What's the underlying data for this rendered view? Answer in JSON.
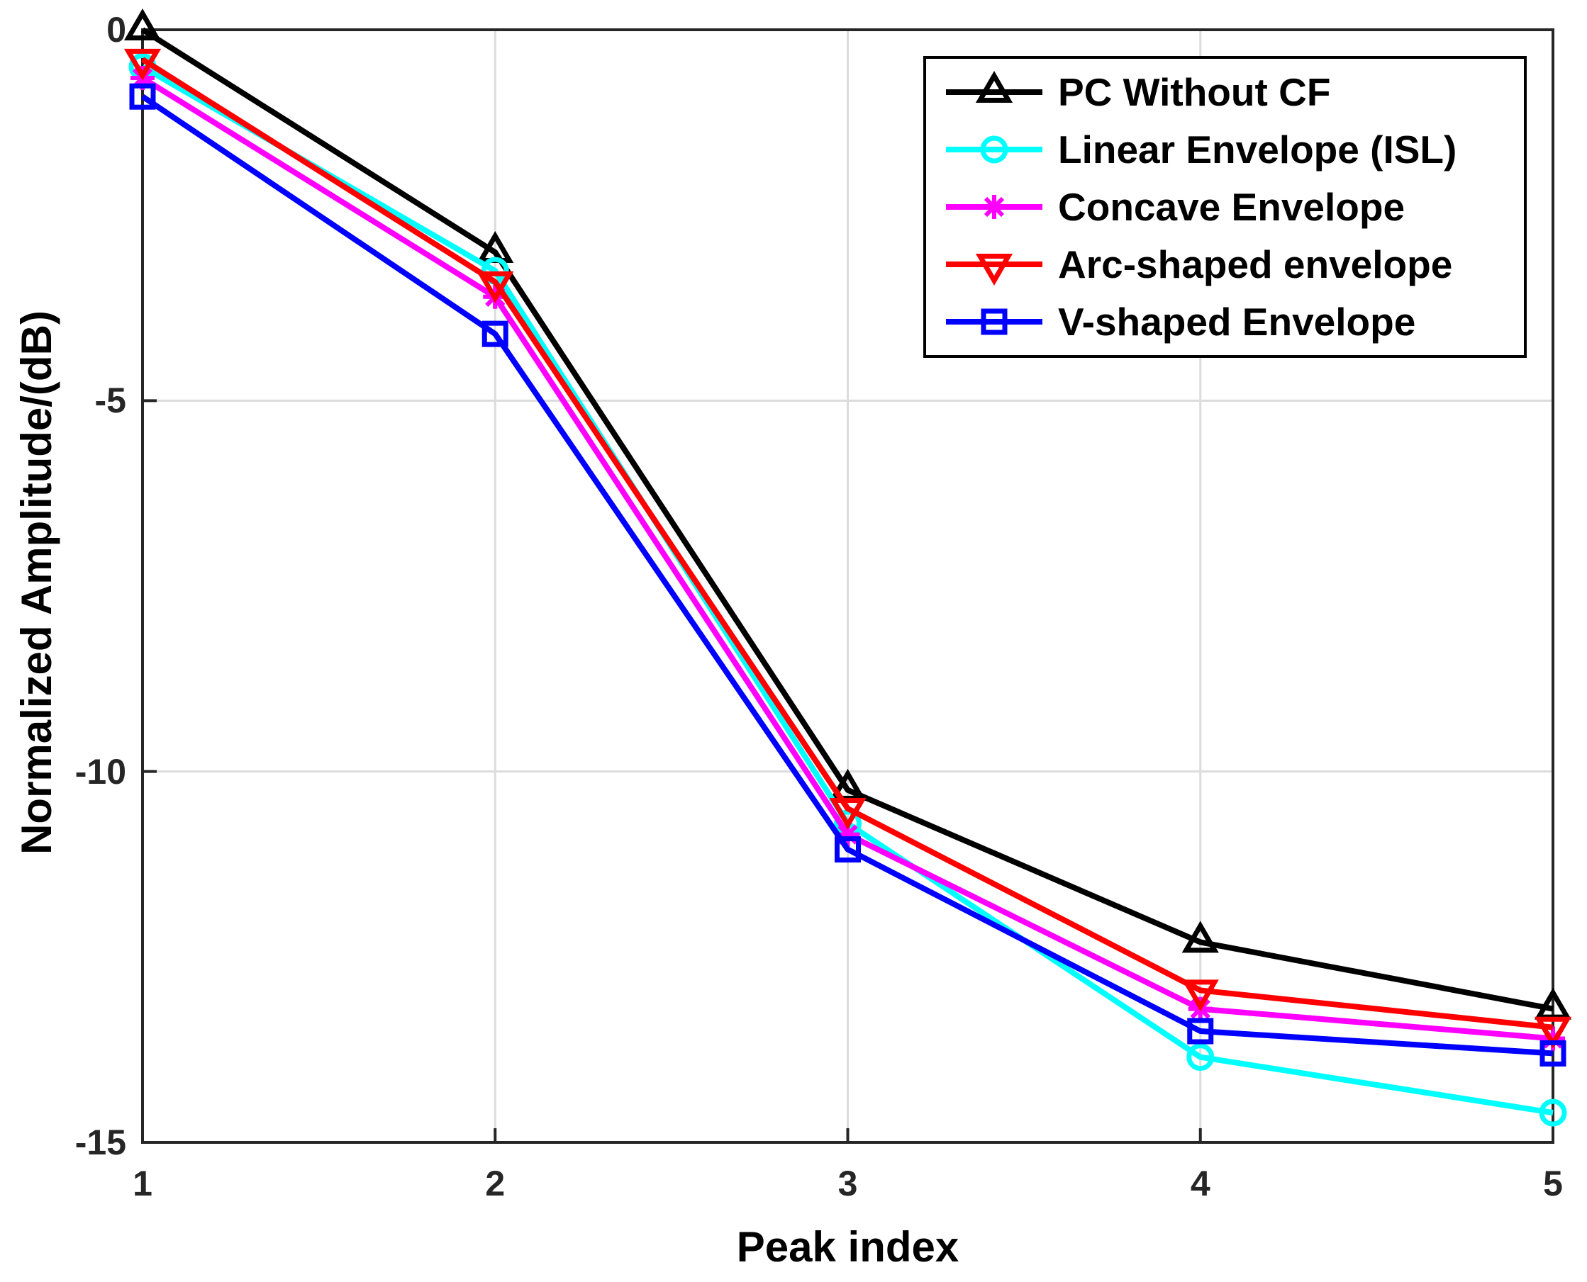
{
  "chart_data": {
    "type": "line",
    "title": "",
    "xlabel": "Peak index",
    "ylabel": "Normalized Amplitude/(dB)",
    "xlim": [
      1,
      5
    ],
    "ylim": [
      -15,
      0
    ],
    "xticks": [
      1,
      2,
      3,
      4,
      5
    ],
    "yticks": [
      0,
      -5,
      -10,
      -15
    ],
    "grid": true,
    "legend_position": "top-right",
    "axis_color": "#262626",
    "grid_color": "#dcdcdc",
    "x": [
      1,
      2,
      3,
      4,
      5
    ],
    "series": [
      {
        "name": "PC Without CF",
        "color": "#000000",
        "marker": "triangle-up",
        "values": [
          0,
          -3.0,
          -10.25,
          -12.3,
          -13.2
        ]
      },
      {
        "name": "Linear Envelope (ISL)",
        "color": "#00ffff",
        "marker": "circle",
        "values": [
          -0.5,
          -3.25,
          -10.7,
          -13.85,
          -14.6
        ]
      },
      {
        "name": "Concave Envelope",
        "color": "#ff00ff",
        "marker": "asterisk",
        "values": [
          -0.65,
          -3.6,
          -10.85,
          -13.2,
          -13.6
        ]
      },
      {
        "name": "Arc-shaped envelope",
        "color": "#ff0000",
        "marker": "triangle-down",
        "values": [
          -0.4,
          -3.4,
          -10.5,
          -12.95,
          -13.45
        ]
      },
      {
        "name": "V-shaped Envelope",
        "color": "#0000ff",
        "marker": "square",
        "values": [
          -0.9,
          -4.1,
          -11.05,
          -13.5,
          -13.8
        ]
      }
    ]
  }
}
